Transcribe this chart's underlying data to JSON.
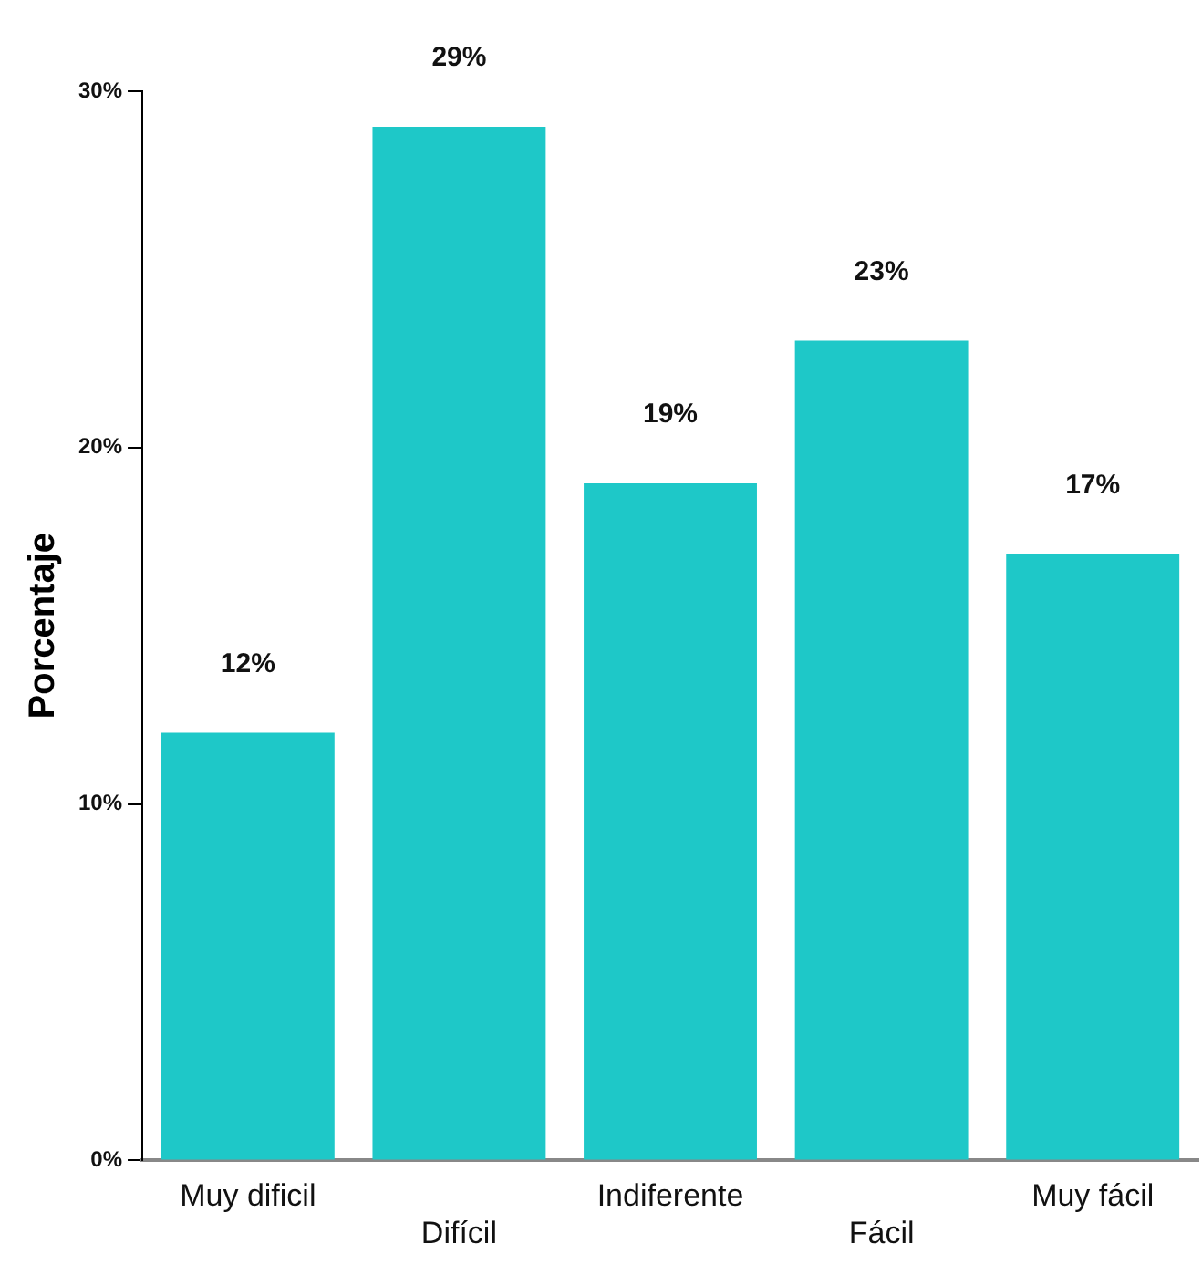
{
  "chart_data": {
    "type": "bar",
    "ylabel": "Porcentaje",
    "categories": [
      "Muy dificil",
      "Difícil",
      "Indiferente",
      "Fácil",
      "Muy fácil"
    ],
    "values": [
      12,
      29,
      19,
      23,
      17
    ],
    "value_labels": [
      "12%",
      "29%",
      "19%",
      "23%",
      "17%"
    ],
    "color": "#1ec8c8",
    "ylim": [
      0,
      30
    ],
    "yticks": [
      {
        "value": 0,
        "label": "0%"
      },
      {
        "value": 10,
        "label": "10%"
      },
      {
        "value": 20,
        "label": "20%"
      },
      {
        "value": 30,
        "label": "30%"
      }
    ],
    "grid": false,
    "legend": false
  }
}
